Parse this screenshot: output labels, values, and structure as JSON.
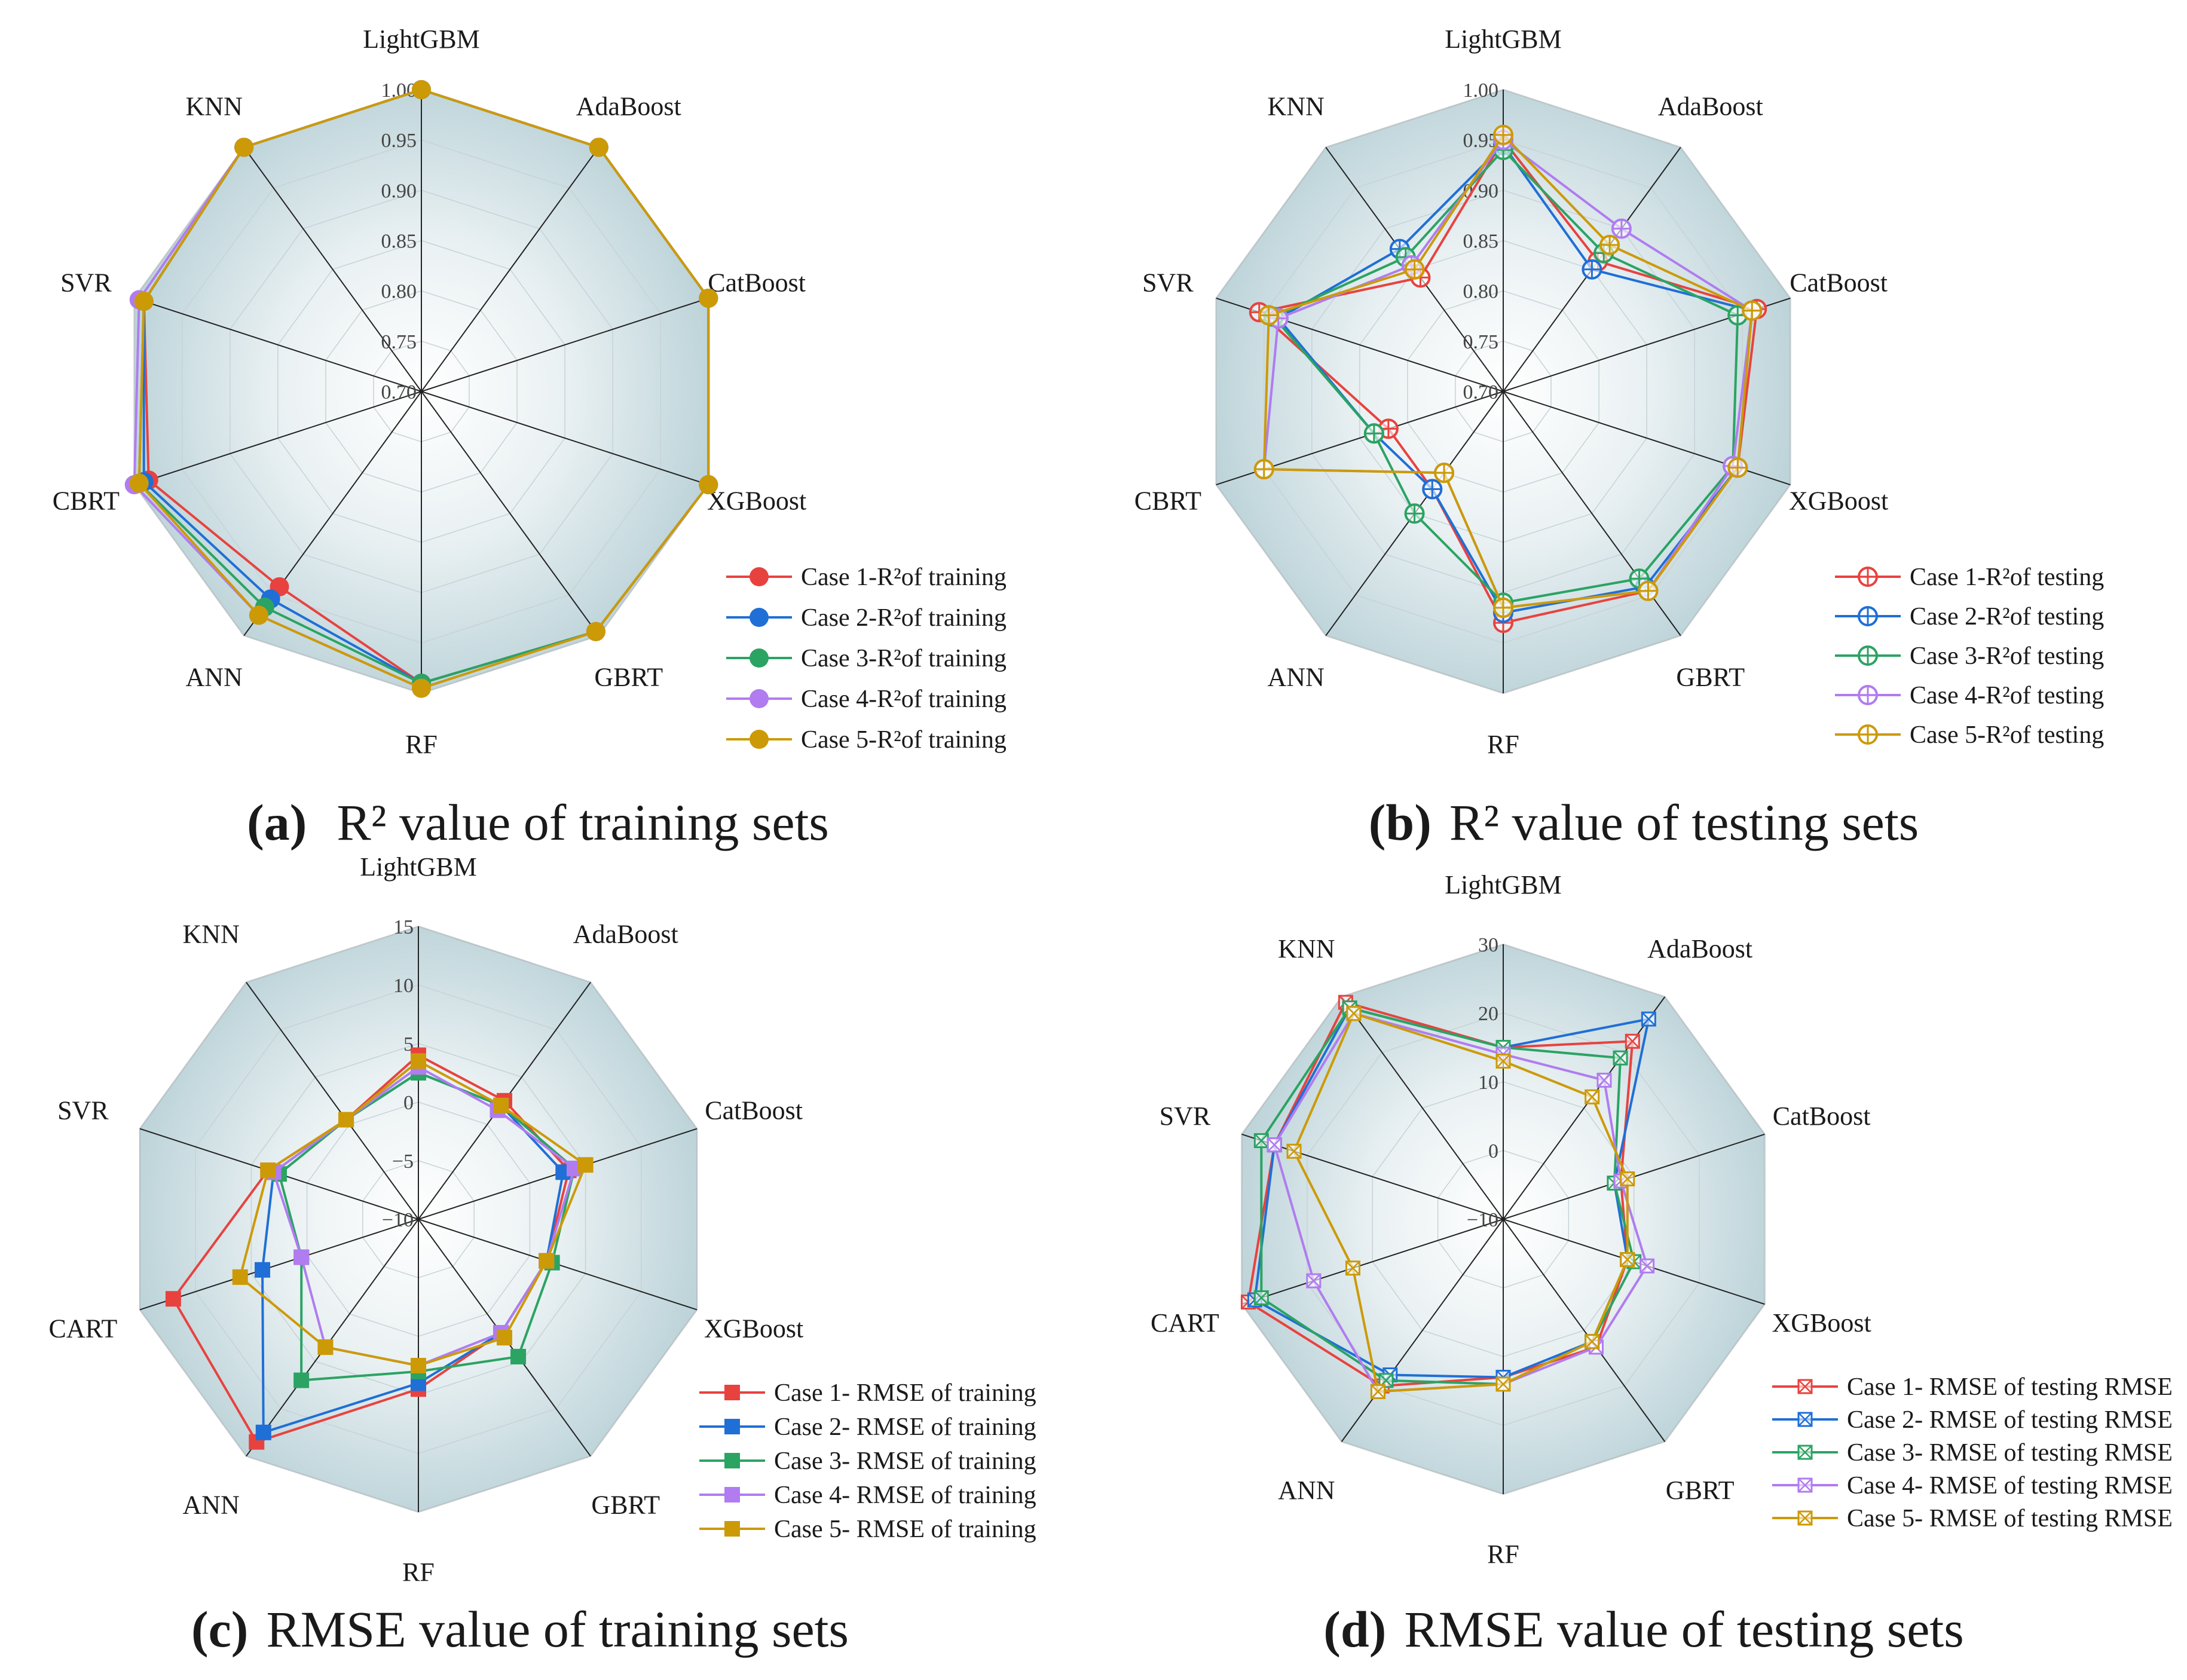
{
  "chart_data": [
    {
      "id": "a",
      "type": "radar",
      "panel_label": "(a)",
      "caption": "R² value of training sets",
      "axes": [
        "LightGBM",
        "AdaBoost",
        "CatBoost",
        "XGBoost",
        "GBRT",
        "RF",
        "ANN",
        "CBRT",
        "SVR",
        "KNN"
      ],
      "ticks": [
        "0.70",
        "0.75",
        "0.80",
        "0.85",
        "0.90",
        "0.95",
        "1.00"
      ],
      "range": [
        0.7,
        1.0
      ],
      "marker": "circle",
      "series": [
        {
          "name": "Case 1-R²of training",
          "color": "#e8423f",
          "values": [
            1.0,
            1.0,
            1.0,
            1.0,
            0.995,
            0.99,
            0.94,
            0.985,
            0.99,
            1.0
          ]
        },
        {
          "name": "Case 2-R²of training",
          "color": "#1f6fd6",
          "values": [
            1.0,
            1.0,
            1.0,
            1.0,
            0.995,
            0.99,
            0.955,
            0.99,
            0.99,
            1.0
          ]
        },
        {
          "name": "Case 3-R²of training",
          "color": "#2ba363",
          "values": [
            1.0,
            1.0,
            1.0,
            1.0,
            0.995,
            0.99,
            0.965,
            0.995,
            0.99,
            1.0
          ]
        },
        {
          "name": "Case 4-R²of training",
          "color": "#b07cf0",
          "values": [
            1.0,
            1.0,
            1.0,
            1.0,
            0.995,
            0.995,
            0.975,
            1.0,
            0.995,
            1.0
          ]
        },
        {
          "name": "Case 5-R²of training",
          "color": "#cc9a06",
          "values": [
            1.0,
            1.0,
            1.0,
            1.0,
            0.995,
            0.995,
            0.975,
            0.995,
            0.99,
            1.0
          ]
        }
      ]
    },
    {
      "id": "b",
      "type": "radar",
      "panel_label": "(b)",
      "caption": "R² value of testing sets",
      "axes": [
        "LightGBM",
        "AdaBoost",
        "CatBoost",
        "XGBoost",
        "GBRT",
        "RF",
        "ANN",
        "CBRT",
        "SVR",
        "KNN"
      ],
      "ticks": [
        "0.70",
        "0.75",
        "0.80",
        "0.85",
        "0.90",
        "0.95",
        "1.00"
      ],
      "range": [
        0.7,
        1.0
      ],
      "marker": "circle-plus",
      "series": [
        {
          "name": "Case 1-R²of testing",
          "color": "#e8423f",
          "values": [
            0.95,
            0.86,
            0.965,
            0.945,
            0.945,
            0.93,
            0.82,
            0.82,
            0.955,
            0.84
          ]
        },
        {
          "name": "Case 2-R²of testing",
          "color": "#1f6fd6",
          "values": [
            0.945,
            0.85,
            0.96,
            0.945,
            0.94,
            0.92,
            0.82,
            0.835,
            0.935,
            0.875
          ]
        },
        {
          "name": "Case 3-R²of testing",
          "color": "#2ba363",
          "values": [
            0.94,
            0.87,
            0.945,
            0.94,
            0.93,
            0.91,
            0.85,
            0.835,
            0.94,
            0.865
          ]
        },
        {
          "name": "Case 4-R²of testing",
          "color": "#b07cf0",
          "values": [
            0.95,
            0.9,
            0.96,
            0.94,
            0.945,
            0.915,
            0.8,
            0.95,
            0.935,
            0.855
          ]
        },
        {
          "name": "Case 5-R²of testing",
          "color": "#cc9a06",
          "values": [
            0.955,
            0.88,
            0.96,
            0.945,
            0.945,
            0.915,
            0.8,
            0.95,
            0.945,
            0.85
          ]
        }
      ]
    },
    {
      "id": "c",
      "type": "radar",
      "panel_label": "(c)",
      "caption": "RMSE value of training sets",
      "axes": [
        "LightGBM",
        "AdaBoost",
        "CatBoost",
        "XGBoost",
        "GBRT",
        "RF",
        "ANN",
        "CART",
        "SVR",
        "KNN"
      ],
      "ticks": [
        "−10",
        "−5",
        "0",
        "5",
        "10",
        "15"
      ],
      "range": [
        -10,
        15
      ],
      "marker": "square",
      "series": [
        {
          "name": "Case 1- RMSE of training",
          "color": "#e8423f",
          "values": [
            4.0,
            2.5,
            3.5,
            1.5,
            2.0,
            4.5,
            13.5,
            12.0,
            3.5,
            0.5
          ]
        },
        {
          "name": "Case 2- RMSE of training",
          "color": "#1f6fd6",
          "values": [
            2.5,
            2.0,
            3.0,
            1.5,
            2.0,
            4.0,
            12.5,
            4.0,
            3.0,
            0.5
          ]
        },
        {
          "name": "Case 3- RMSE of training",
          "color": "#2ba363",
          "values": [
            2.5,
            2.0,
            4.0,
            2.0,
            4.5,
            3.0,
            7.0,
            0.5,
            2.5,
            0.5
          ]
        },
        {
          "name": "Case 4- RMSE of training",
          "color": "#b07cf0",
          "values": [
            3.0,
            1.5,
            4.0,
            1.5,
            2.0,
            2.5,
            3.5,
            0.5,
            3.0,
            0.5
          ]
        },
        {
          "name": "Case 5- RMSE of training",
          "color": "#cc9a06",
          "values": [
            3.5,
            2.0,
            5.0,
            1.5,
            2.5,
            2.5,
            3.5,
            6.0,
            3.5,
            0.5
          ]
        }
      ]
    },
    {
      "id": "d",
      "type": "radar",
      "panel_label": "(d)",
      "caption": "RMSE value of testing sets",
      "axes": [
        "LightGBM",
        "AdaBoost",
        "CatBoost",
        "XGBoost",
        "GBRT",
        "RF",
        "ANN",
        "CART",
        "SVR",
        "KNN"
      ],
      "ticks": [
        "−10",
        "0",
        "10",
        "20",
        "30"
      ],
      "range": [
        -10,
        30
      ],
      "marker": "square-x",
      "series": [
        {
          "name": "Case 1- RMSE of testing RMSE",
          "color": "#e8423f",
          "values": [
            15,
            22,
            8,
            9,
            13,
            13,
            20,
            29,
            25,
            29
          ]
        },
        {
          "name": "Case 2- RMSE of testing RMSE",
          "color": "#1f6fd6",
          "values": [
            15,
            26,
            7,
            9,
            12,
            13,
            18,
            28,
            25,
            28
          ]
        },
        {
          "name": "Case 3- RMSE of testing RMSE",
          "color": "#2ba363",
          "values": [
            15,
            19,
            7,
            10,
            12,
            14,
            19,
            27,
            27,
            28
          ]
        },
        {
          "name": "Case 4- RMSE of testing RMSE",
          "color": "#b07cf0",
          "values": [
            14,
            15,
            8,
            12,
            13,
            14,
            21,
            19,
            25,
            27
          ]
        },
        {
          "name": "Case 5- RMSE of testing RMSE",
          "color": "#cc9a06",
          "values": [
            13,
            12,
            9,
            9,
            12,
            14,
            21,
            13,
            22,
            27
          ]
        }
      ]
    }
  ]
}
